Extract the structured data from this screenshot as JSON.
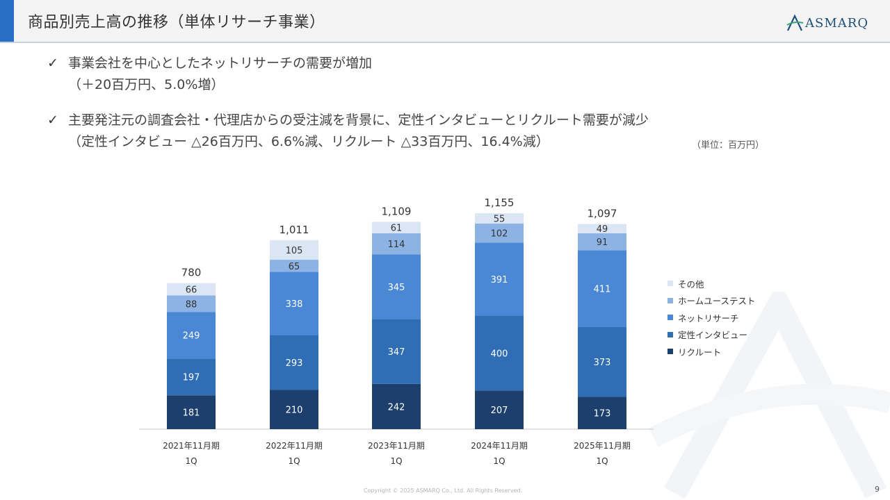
{
  "header": {
    "title": "商品別売上高の推移（単体リサーチ事業）",
    "logo_text": "ASMARQ"
  },
  "bullets": [
    {
      "icon": "check-icon",
      "check": "✓",
      "line1": "事業会社を中心としたネットリサーチの需要が増加",
      "line2": "（＋20百万円、5.0%増）"
    },
    {
      "icon": "check-icon",
      "check": "✓",
      "line1": "主要発注元の調査会社・代理店からの受注減を背景に、定性インタビューとリクルート需要が減少",
      "line2": "（定性インタビュー △26百万円、6.6%減、リクルート △33百万円、16.4%減）"
    }
  ],
  "unit_label": "（単位：百万円）",
  "chart_data": {
    "type": "bar",
    "stacked": true,
    "categories": [
      "2021年11月期\n1Q",
      "2022年11月期\n1Q",
      "2023年11月期\n1Q",
      "2024年11月期\n1Q",
      "2025年11月期\n1Q"
    ],
    "totals": [
      "780",
      "1,011",
      "1,109",
      "1,155",
      "1,097"
    ],
    "series": [
      {
        "name": "リクルート",
        "values": [
          181,
          210,
          242,
          207,
          173
        ],
        "color": "#1d3f6e",
        "label_color": "#ffffff"
      },
      {
        "name": "定性インタビュー",
        "values": [
          197,
          293,
          347,
          400,
          373
        ],
        "color": "#2f6db5",
        "label_color": "#ffffff"
      },
      {
        "name": "ネットリサーチ",
        "values": [
          249,
          338,
          345,
          391,
          411
        ],
        "color": "#4a88d6",
        "label_color": "#ffffff"
      },
      {
        "name": "ホームユーステスト",
        "values": [
          88,
          65,
          114,
          102,
          91
        ],
        "color": "#8db3e5",
        "label_color": "#333333"
      },
      {
        "name": "その他",
        "values": [
          66,
          105,
          61,
          55,
          49
        ],
        "color": "#dbe6f5",
        "label_color": "#333333"
      }
    ],
    "legend_position": "right",
    "grid": false,
    "ylim": [
      0,
      1200
    ]
  },
  "footer": {
    "copyright": "Copyright © 2025 ASMARQ Co., Ltd. All Rights Reserved.",
    "page_number": "9"
  }
}
